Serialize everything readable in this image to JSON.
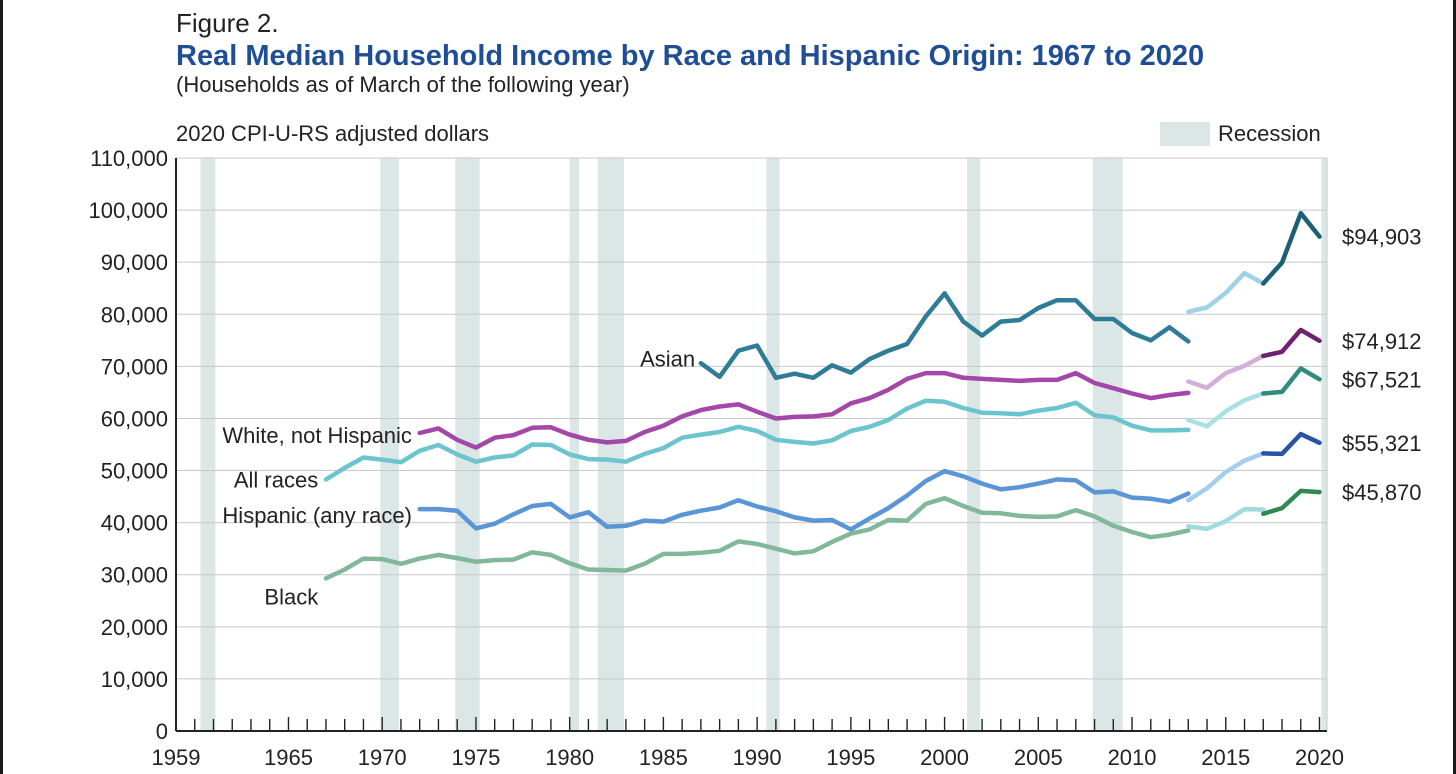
{
  "figure_label": "Figure 2.",
  "title": "Real Median Household Income by Race and Hispanic Origin: 1967 to 2020",
  "subtitle": "(Households as of March of the following year)",
  "colors": {
    "recession": "#dbe6e6",
    "grid": "#c8c8c8",
    "axis": "#222222"
  },
  "chart_data": {
    "type": "line",
    "title": "Real Median Household Income by Race and Hispanic Origin: 1967 to 2020",
    "ylabel": "2020 CPI-U-RS adjusted dollars",
    "xlabel": "",
    "xlim": [
      1959,
      2020.4
    ],
    "ylim": [
      0,
      110000
    ],
    "grid": true,
    "yticks": [
      0,
      10000,
      20000,
      30000,
      40000,
      50000,
      60000,
      70000,
      80000,
      90000,
      100000,
      110000
    ],
    "ytick_labels": [
      "0",
      "10,000",
      "20,000",
      "30,000",
      "40,000",
      "50,000",
      "60,000",
      "70,000",
      "80,000",
      "90,000",
      "100,000",
      "110,000"
    ],
    "xticks": [
      1959,
      1965,
      1970,
      1975,
      1980,
      1985,
      1990,
      1995,
      2000,
      2005,
      2010,
      2015,
      2020
    ],
    "xtick_labels": [
      "1959",
      "1965",
      "1970",
      "1975",
      "1980",
      "1985",
      "1990",
      "1995",
      "2000",
      "2005",
      "2010",
      "2015",
      "2020"
    ],
    "legend": {
      "label": "Recession",
      "placement": "top-right"
    },
    "recessions": [
      [
        1960.3,
        1961.1
      ],
      [
        1969.9,
        1970.9
      ],
      [
        1973.9,
        1975.2
      ],
      [
        1980.0,
        1980.5
      ],
      [
        1981.5,
        1982.9
      ],
      [
        1990.5,
        1991.2
      ],
      [
        2001.2,
        2001.9
      ],
      [
        2007.9,
        2009.5
      ],
      [
        2020.1,
        2020.4
      ]
    ],
    "series": [
      {
        "name": "Asian",
        "label": "Asian",
        "end_label": "$94,903",
        "segments": [
          {
            "color": "#2e7c96",
            "x": [
              1987,
              1988,
              1989,
              1990,
              1991,
              1992,
              1993,
              1994,
              1995,
              1996,
              1997,
              1998,
              1999,
              2000,
              2001,
              2002,
              2003,
              2004,
              2005,
              2006,
              2007,
              2008,
              2009,
              2010,
              2011,
              2012,
              2013
            ],
            "y": [
              70600,
              68000,
              73000,
              74000,
              67800,
              68600,
              67800,
              70200,
              68800,
              71400,
              73000,
              74300,
              79600,
              84000,
              78600,
              75900,
              78600,
              78900,
              81200,
              82700,
              82700,
              79100,
              79100,
              76400,
              75000,
              77500,
              74800
            ]
          },
          {
            "color": "#9fd2e4",
            "x": [
              2013,
              2014,
              2015,
              2016,
              2017
            ],
            "y": [
              80500,
              81300,
              84100,
              87900,
              85900
            ]
          },
          {
            "color": "#1c5f77",
            "x": [
              2017,
              2018,
              2019,
              2020
            ],
            "y": [
              85900,
              89900,
              99400,
              94903
            ]
          }
        ]
      },
      {
        "name": "White, not Hispanic",
        "label": "White, not Hispanic",
        "end_label": "$74,912",
        "segments": [
          {
            "color": "#a347a8",
            "x": [
              1972,
              1973,
              1974,
              1975,
              1976,
              1977,
              1978,
              1979,
              1980,
              1981,
              1982,
              1983,
              1984,
              1985,
              1986,
              1987,
              1988,
              1989,
              1990,
              1991,
              1992,
              1993,
              1994,
              1995,
              1996,
              1997,
              1998,
              1999,
              2000,
              2001,
              2002,
              2003,
              2004,
              2005,
              2006,
              2007,
              2008,
              2009,
              2010,
              2011,
              2012,
              2013
            ],
            "y": [
              57200,
              58100,
              55900,
              54400,
              56300,
              56800,
              58200,
              58300,
              56900,
              55900,
              55400,
              55700,
              57400,
              58600,
              60400,
              61600,
              62300,
              62700,
              61300,
              60000,
              60300,
              60400,
              60800,
              62900,
              63900,
              65500,
              67600,
              68700,
              68700,
              67800,
              67600,
              67400,
              67200,
              67400,
              67400,
              68700,
              66800,
              65800,
              64800,
              63900,
              64500,
              64900
            ]
          },
          {
            "color": "#d2afd8",
            "x": [
              2013,
              2014,
              2015,
              2016,
              2017
            ],
            "y": [
              67100,
              65900,
              68700,
              70100,
              72000
            ]
          },
          {
            "color": "#6d2170",
            "x": [
              2017,
              2018,
              2019,
              2020
            ],
            "y": [
              72000,
              72800,
              77000,
              74912
            ]
          }
        ]
      },
      {
        "name": "All races",
        "label": "All races",
        "end_label": "$67,521",
        "segments": [
          {
            "color": "#6cc4cf",
            "x": [
              1967,
              1968,
              1969,
              1970,
              1971,
              1972,
              1973,
              1974,
              1975,
              1976,
              1977,
              1978,
              1979,
              1980,
              1981,
              1982,
              1983,
              1984,
              1985,
              1986,
              1987,
              1988,
              1989,
              1990,
              1991,
              1992,
              1993,
              1994,
              1995,
              1996,
              1997,
              1998,
              1999,
              2000,
              2001,
              2002,
              2003,
              2004,
              2005,
              2006,
              2007,
              2008,
              2009,
              2010,
              2011,
              2012,
              2013
            ],
            "y": [
              48300,
              50500,
              52500,
              52100,
              51600,
              53800,
              54900,
              53100,
              51700,
              52500,
              52900,
              55000,
              54900,
              53100,
              52200,
              52100,
              51700,
              53200,
              54300,
              56300,
              56900,
              57400,
              58400,
              57600,
              55900,
              55500,
              55200,
              55800,
              57600,
              58400,
              59700,
              61900,
              63400,
              63200,
              62000,
              61100,
              61000,
              60800,
              61500,
              62000,
              63000,
              60600,
              60200,
              58600,
              57700,
              57700,
              57800
            ]
          },
          {
            "color": "#a8e0e4",
            "x": [
              2013,
              2014,
              2015,
              2016,
              2017
            ],
            "y": [
              59700,
              58500,
              61400,
              63500,
              64800
            ]
          },
          {
            "color": "#2f8a80",
            "x": [
              2017,
              2018,
              2019,
              2020
            ],
            "y": [
              64800,
              65100,
              69600,
              67521
            ]
          }
        ]
      },
      {
        "name": "Hispanic (any race)",
        "label": "Hispanic (any race)",
        "end_label": "$55,321",
        "segments": [
          {
            "color": "#5a95d6",
            "x": [
              1972,
              1973,
              1974,
              1975,
              1976,
              1977,
              1978,
              1979,
              1980,
              1981,
              1982,
              1983,
              1984,
              1985,
              1986,
              1987,
              1988,
              1989,
              1990,
              1991,
              1992,
              1993,
              1994,
              1995,
              1996,
              1997,
              1998,
              1999,
              2000,
              2001,
              2002,
              2003,
              2004,
              2005,
              2006,
              2007,
              2008,
              2009,
              2010,
              2011,
              2012,
              2013
            ],
            "y": [
              42600,
              42600,
              42300,
              38900,
              39800,
              41600,
              43200,
              43600,
              41000,
              42000,
              39200,
              39400,
              40400,
              40200,
              41500,
              42300,
              42900,
              44300,
              43100,
              42200,
              41000,
              40400,
              40500,
              38700,
              40800,
              42800,
              45200,
              48000,
              49900,
              48900,
              47500,
              46400,
              46800,
              47500,
              48300,
              48100,
              45800,
              46000,
              44800,
              44600,
              44000,
              45600
            ]
          },
          {
            "color": "#a5cdee",
            "x": [
              2013,
              2014,
              2015,
              2016,
              2017
            ],
            "y": [
              44300,
              46600,
              49700,
              51900,
              53300
            ]
          },
          {
            "color": "#2a52a8",
            "x": [
              2017,
              2018,
              2019,
              2020
            ],
            "y": [
              53300,
              53200,
              57000,
              55321
            ]
          }
        ]
      },
      {
        "name": "Black",
        "label": "Black",
        "end_label": "$45,870",
        "segments": [
          {
            "color": "#82b89a",
            "x": [
              1967,
              1968,
              1969,
              1970,
              1971,
              1972,
              1973,
              1974,
              1975,
              1976,
              1977,
              1978,
              1979,
              1980,
              1981,
              1982,
              1983,
              1984,
              1985,
              1986,
              1987,
              1988,
              1989,
              1990,
              1991,
              1992,
              1993,
              1994,
              1995,
              1996,
              1997,
              1998,
              1999,
              2000,
              2001,
              2002,
              2003,
              2004,
              2005,
              2006,
              2007,
              2008,
              2009,
              2010,
              2011,
              2012,
              2013
            ],
            "y": [
              29300,
              31000,
              33100,
              33000,
              32100,
              33100,
              33800,
              33200,
              32500,
              32800,
              32900,
              34300,
              33800,
              32200,
              31000,
              30900,
              30800,
              32100,
              34000,
              34000,
              34200,
              34600,
              36400,
              35900,
              35000,
              34100,
              34500,
              36300,
              37900,
              38700,
              40500,
              40400,
              43600,
              44700,
              43200,
              41900,
              41800,
              41300,
              41100,
              41200,
              42400,
              41200,
              39400,
              38200,
              37200,
              37700,
              38500
            ]
          },
          {
            "color": "#9fdbdb",
            "x": [
              2013,
              2014,
              2015,
              2016,
              2017
            ],
            "y": [
              39300,
              38800,
              40300,
              42600,
              42500
            ]
          },
          {
            "color": "#2e8a52",
            "x": [
              2017,
              2018,
              2019,
              2020
            ],
            "y": [
              41700,
              42800,
              46100,
              45870
            ]
          }
        ]
      }
    ]
  }
}
